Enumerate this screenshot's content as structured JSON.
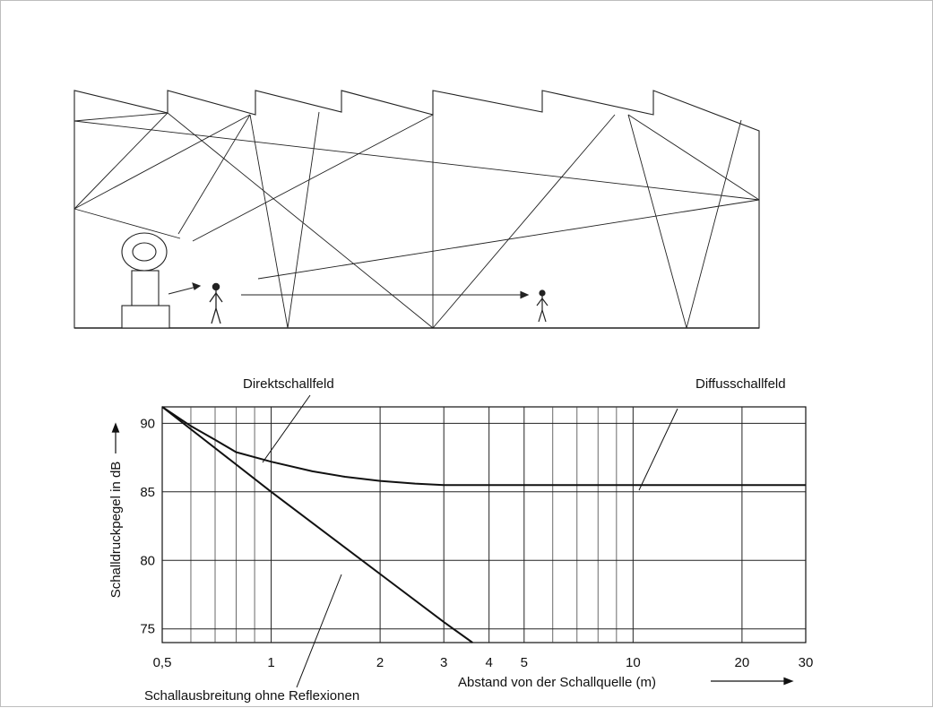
{
  "diagram": {
    "title": ""
  },
  "chart_data": {
    "type": "line",
    "title": "",
    "xlabel": "Abstand von der Schallquelle (m)",
    "ylabel": "Schalldruckpegel in dB",
    "x_scale": "log",
    "xlim": [
      0.5,
      30
    ],
    "ylim": [
      74,
      91.2
    ],
    "x_ticks": [
      "0,5",
      "1",
      "2",
      "3",
      "4",
      "5",
      "10",
      "20",
      "30"
    ],
    "y_ticks": [
      "75",
      "80",
      "85",
      "90"
    ],
    "grid": true,
    "series": [
      {
        "name": "",
        "x": [
          0.5,
          0.6,
          0.7,
          0.8,
          1,
          1.3,
          1.6,
          2,
          2.5,
          3,
          4,
          5,
          7,
          10,
          15,
          20,
          30
        ],
        "y": [
          91.2,
          89.8,
          88.8,
          87.9,
          87.2,
          86.5,
          86.1,
          85.8,
          85.6,
          85.5,
          85.5,
          85.5,
          85.5,
          85.5,
          85.5,
          85.5,
          85.5
        ]
      },
      {
        "name": "",
        "x": [
          0.5,
          1,
          2,
          3,
          3.6
        ],
        "y": [
          91.2,
          85.0,
          79.0,
          75.5,
          74.0
        ]
      }
    ],
    "annotations": [
      {
        "text": "Direktschallfeld",
        "series_index": 0,
        "region": "near-field"
      },
      {
        "text": "Diffusschallfeld",
        "series_index": 0,
        "region": "far-field"
      },
      {
        "text": "Schallausbreitung ohne Reflexionen",
        "series_index": 1
      }
    ]
  }
}
